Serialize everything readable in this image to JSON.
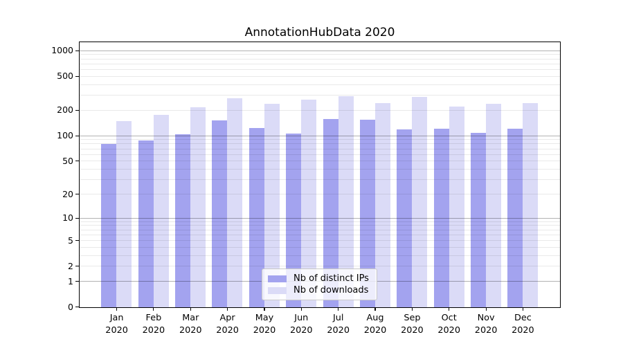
{
  "title": "AnnotationHubData 2020",
  "colors": {
    "bar_distinct_ips": "#a3a3ef",
    "bar_downloads": "#dbdbf7",
    "grid_major": "rgba(0,0,0,0.30)",
    "grid_minor": "rgba(0,0,0,0.085)",
    "axis": "#000000",
    "legend_border": "#c9c9c9",
    "background": "#ffffff"
  },
  "legend": {
    "items": [
      {
        "label": "Nb of distinct IPs"
      },
      {
        "label": "Nb of downloads"
      }
    ]
  },
  "x_axis": {
    "months": [
      "Jan",
      "Feb",
      "Mar",
      "Apr",
      "May",
      "Jun",
      "Jul",
      "Aug",
      "Sep",
      "Oct",
      "Nov",
      "Dec"
    ],
    "year": "2020"
  },
  "y_axis": {
    "tick_labels": [
      "0",
      "1",
      "2",
      "5",
      "10",
      "20",
      "50",
      "100",
      "200",
      "500",
      "1000"
    ]
  },
  "chart_data": {
    "type": "bar",
    "title": "AnnotationHubData 2020",
    "categories": [
      "Jan 2020",
      "Feb 2020",
      "Mar 2020",
      "Apr 2020",
      "May 2020",
      "Jun 2020",
      "Jul 2020",
      "Aug 2020",
      "Sep 2020",
      "Oct 2020",
      "Nov 2020",
      "Dec 2020"
    ],
    "series": [
      {
        "name": "Nb of distinct IPs",
        "color": "#a3a3ef",
        "values": [
          80,
          88,
          105,
          153,
          125,
          106,
          158,
          155,
          120,
          122,
          109,
          121
        ]
      },
      {
        "name": "Nb of downloads",
        "color": "#dbdbf7",
        "values": [
          150,
          178,
          220,
          280,
          240,
          266,
          292,
          244,
          287,
          223,
          238,
          245
        ]
      }
    ],
    "xlabel": "",
    "ylabel": "",
    "yscale": "log1p",
    "ylim": [
      0,
      1300
    ],
    "yticks": [
      0,
      1,
      2,
      5,
      10,
      20,
      50,
      100,
      200,
      500,
      1000
    ],
    "grid": {
      "on": true,
      "major_ticks": [
        1,
        10,
        100,
        1000
      ],
      "minor_ticks": [
        2,
        3,
        4,
        5,
        6,
        7,
        8,
        9,
        20,
        30,
        40,
        50,
        60,
        70,
        80,
        90,
        200,
        300,
        400,
        500,
        600,
        700,
        800,
        900
      ]
    },
    "legend_position": "lower center"
  }
}
